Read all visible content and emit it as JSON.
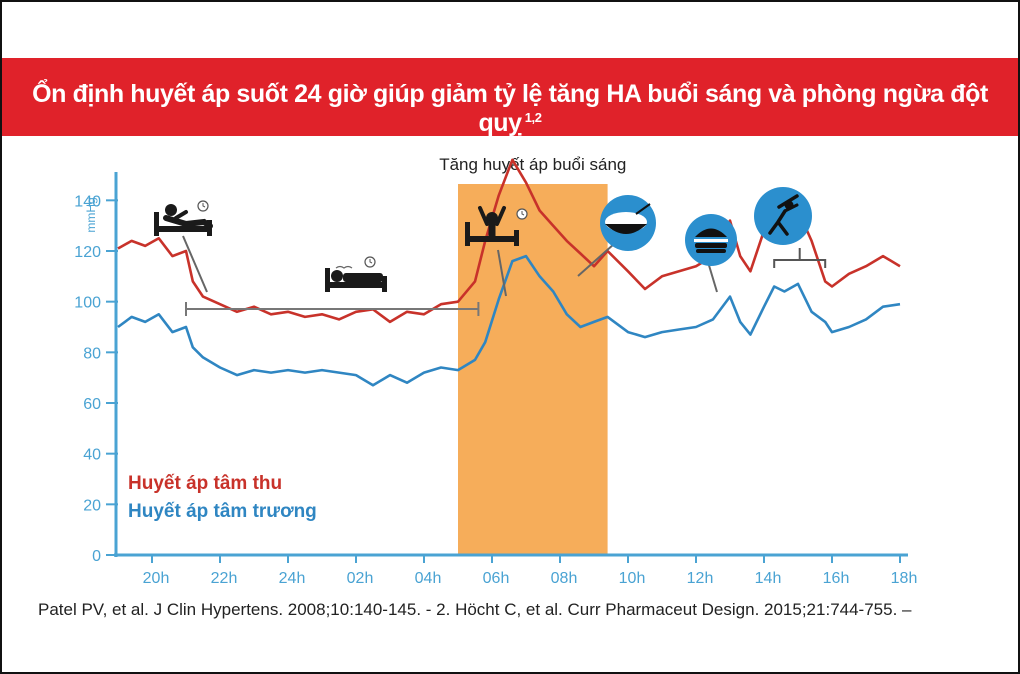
{
  "header": {
    "title": "Ổn định huyết áp suốt 24 giờ giúp giảm tỷ lệ tăng HA buổi sáng và phòng ngừa đột quỵ",
    "superscript": "1,2"
  },
  "reference": "Patel PV, et al. J Clin Hypertens. 2008;10:140-145. - 2. Höcht C, et al. Curr Pharmaceut Design. 2015;21:744-755. –",
  "colors": {
    "banner": "#e0222a",
    "systolic": "#c8322a",
    "diastolic": "#2f86c2",
    "morning_band": "#f6ad5a",
    "axis": "#4aa3d3",
    "icon_circle": "#2b8fce"
  },
  "icons": [
    "person-reclining-icon",
    "person-sleeping-icon",
    "person-waking-icon",
    "rice-bowl-icon",
    "burger-icon",
    "person-exercising-icon"
  ],
  "chart_data": {
    "type": "line",
    "ylabel": "mmHg",
    "ylim": [
      0,
      150
    ],
    "yticks": [
      "0",
      "20",
      "40",
      "60",
      "80",
      "100",
      "120",
      "140"
    ],
    "xlim": [
      0,
      23
    ],
    "xticks": [
      "20h",
      "22h",
      "24h",
      "02h",
      "04h",
      "06h",
      "08h",
      "10h",
      "12h",
      "14h",
      "16h",
      "18h"
    ],
    "band_label": "Tăng huyết áp buổi sáng",
    "band": [
      10.0,
      14.4
    ],
    "sleep_bracket": [
      2.0,
      10.6
    ],
    "activity_bracket": [
      19.3,
      20.8
    ],
    "series": [
      {
        "name": "Huyết áp  tâm thu",
        "x": [
          0,
          0.4,
          0.8,
          1.2,
          1.6,
          2.0,
          2.2,
          2.5,
          3.0,
          3.5,
          4.0,
          4.5,
          5.0,
          5.5,
          6.0,
          6.5,
          7.0,
          7.5,
          8.0,
          8.5,
          9.0,
          9.5,
          10.0,
          10.5,
          10.8,
          11.2,
          11.6,
          12.0,
          12.4,
          12.8,
          13.2,
          13.6,
          14.0,
          14.4,
          15.0,
          15.5,
          16.0,
          16.5,
          17.0,
          17.5,
          18.0,
          18.3,
          18.6,
          19.0,
          19.3,
          19.6,
          20.0,
          20.4,
          20.8,
          21.0,
          21.5,
          22.0,
          22.5,
          23.0
        ],
        "values": [
          121,
          124,
          122,
          125,
          118,
          120,
          108,
          102,
          99,
          96,
          98,
          95,
          96,
          94,
          95,
          93,
          96,
          97,
          92,
          96,
          95,
          99,
          100,
          108,
          124,
          142,
          156,
          147,
          136,
          130,
          124,
          119,
          114,
          120,
          112,
          105,
          110,
          112,
          114,
          118,
          132,
          118,
          112,
          128,
          134,
          130,
          136,
          124,
          108,
          106,
          111,
          114,
          118,
          114
        ]
      },
      {
        "name": "Huyết áp tâm trương",
        "x": [
          0,
          0.4,
          0.8,
          1.2,
          1.6,
          2.0,
          2.2,
          2.5,
          3.0,
          3.5,
          4.0,
          4.5,
          5.0,
          5.5,
          6.0,
          6.5,
          7.0,
          7.5,
          8.0,
          8.5,
          9.0,
          9.5,
          10.0,
          10.5,
          10.8,
          11.2,
          11.6,
          12.0,
          12.4,
          12.8,
          13.2,
          13.6,
          14.0,
          14.4,
          15.0,
          15.5,
          16.0,
          16.5,
          17.0,
          17.5,
          18.0,
          18.3,
          18.6,
          19.0,
          19.3,
          19.6,
          20.0,
          20.4,
          20.8,
          21.0,
          21.5,
          22.0,
          22.5,
          23.0
        ],
        "values": [
          90,
          94,
          92,
          95,
          88,
          90,
          82,
          78,
          74,
          71,
          73,
          72,
          73,
          72,
          73,
          72,
          71,
          67,
          71,
          68,
          72,
          74,
          73,
          77,
          84,
          101,
          116,
          118,
          110,
          104,
          95,
          90,
          92,
          94,
          88,
          86,
          88,
          89,
          90,
          93,
          102,
          92,
          87,
          98,
          106,
          104,
          107,
          96,
          92,
          88,
          90,
          93,
          98,
          99
        ]
      }
    ]
  }
}
